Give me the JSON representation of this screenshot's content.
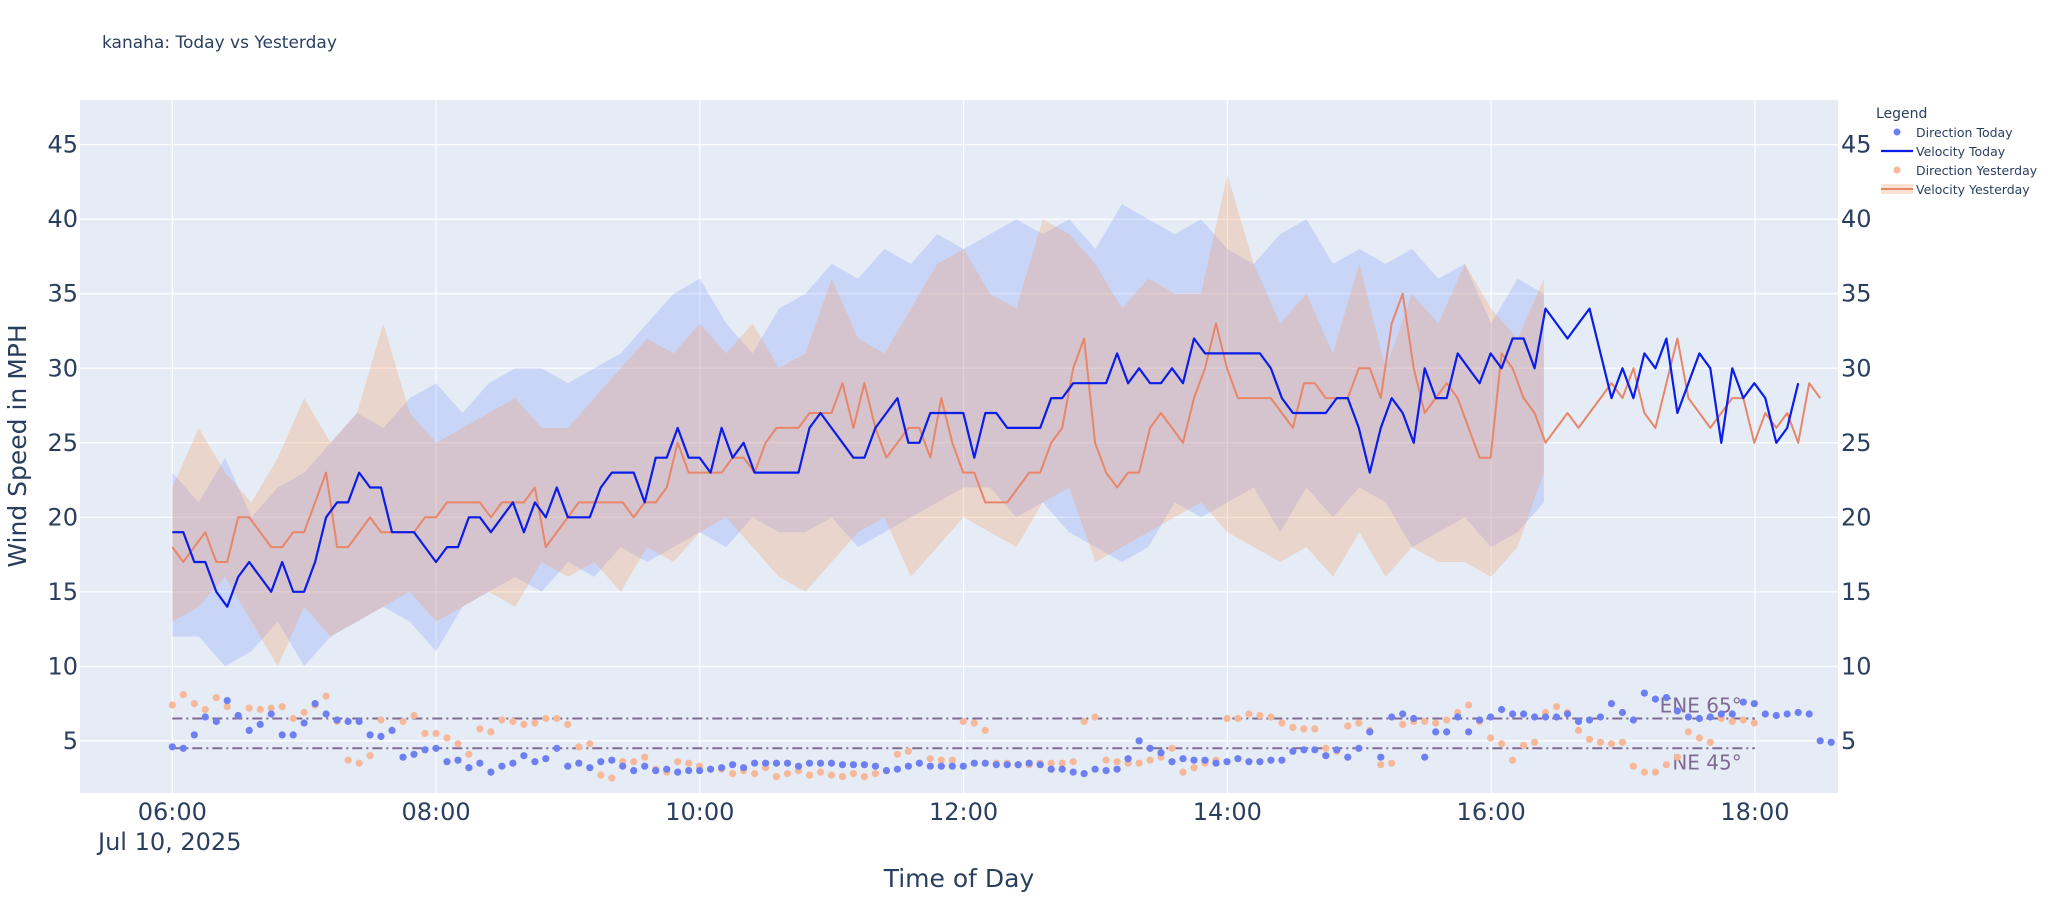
{
  "chart_data": {
    "type": "line",
    "title": "kanaha: Today vs Yesterday",
    "xlabel": "Time of Day",
    "ylabel": "Wind Speed in MPH",
    "date_label": "Jul 10, 2025",
    "x_ticks": [
      "06:00",
      "08:00",
      "10:00",
      "12:00",
      "14:00",
      "16:00",
      "18:00"
    ],
    "x_tick_hours": [
      6,
      8,
      10,
      12,
      14,
      16,
      18
    ],
    "xlim": [
      5.3,
      18.63
    ],
    "ylim": [
      1.5,
      48
    ],
    "y_ticks": [
      5,
      10,
      15,
      20,
      25,
      30,
      35,
      40,
      45
    ],
    "legend_title": "Legend",
    "legend": [
      "Direction Today",
      "Velocity Today",
      "Direction Yesterday",
      "Velocity Yesterday"
    ],
    "colors": {
      "plot_bg": "#e5ecf6",
      "grid": "#ffffff",
      "text": "#2a3f5f",
      "today_line": "#0b1de8",
      "today_points": "#6e7ff2",
      "today_band": "rgba(100,130,250,0.22)",
      "yesterday_line": "#e8866a",
      "yesterday_points": "#f7b89a",
      "yesterday_band": "rgba(245,160,110,0.30)",
      "ref_line": "#7f6a93"
    },
    "reference_lines": [
      {
        "label": "ENE 65°",
        "value": 6.5
      },
      {
        "label": "NE 45°",
        "value": 4.5
      }
    ],
    "series": [
      {
        "name": "Velocity Today",
        "start_hour": 6.0,
        "step_hours": 0.0833,
        "values": [
          19,
          19,
          17,
          17,
          15,
          14,
          16,
          17,
          16,
          15,
          17,
          15,
          15,
          17,
          20,
          21,
          21,
          23,
          22,
          22,
          19,
          19,
          19,
          18,
          17,
          18,
          18,
          20,
          20,
          19,
          20,
          21,
          19,
          21,
          20,
          22,
          20,
          20,
          20,
          22,
          23,
          23,
          23,
          21,
          24,
          24,
          26,
          24,
          24,
          23,
          26,
          24,
          25,
          23,
          23,
          23,
          23,
          23,
          26,
          27,
          26,
          25,
          24,
          24,
          26,
          27,
          28,
          25,
          25,
          27,
          27,
          27,
          27,
          24,
          27,
          27,
          26,
          26,
          26,
          26,
          28,
          28,
          29,
          29,
          29,
          29,
          31,
          29,
          30,
          29,
          29,
          30,
          29,
          32,
          31,
          31,
          31,
          31,
          31,
          31,
          30,
          28,
          27,
          27,
          27,
          27,
          28,
          28,
          26,
          23,
          26,
          28,
          27,
          25,
          30,
          28,
          28,
          31,
          30,
          29,
          31,
          30,
          32,
          32,
          30,
          34,
          33,
          32,
          33,
          34,
          31,
          28,
          30,
          28,
          31,
          30,
          32,
          27,
          29,
          31,
          30,
          25,
          30,
          28,
          29,
          28,
          25,
          26,
          29
        ]
      },
      {
        "name": "Velocity Today Band Upper",
        "start_hour": 6.0,
        "step_hours": 0.2,
        "values": [
          23,
          21,
          24,
          20,
          22,
          23,
          25,
          27,
          26,
          28,
          29,
          27,
          29,
          30,
          30,
          29,
          30,
          31,
          33,
          35,
          36,
          33,
          31,
          34,
          35,
          37,
          36,
          38,
          37,
          39,
          38,
          39,
          40,
          39,
          40,
          38,
          41,
          40,
          39,
          40,
          38,
          37,
          39,
          40,
          37,
          38,
          37,
          38,
          36,
          37,
          33,
          36,
          35
        ]
      },
      {
        "name": "Velocity Today Band Lower",
        "start_hour": 6.0,
        "step_hours": 0.2,
        "values": [
          12,
          12,
          10,
          11,
          13,
          10,
          12,
          13,
          14,
          13,
          11,
          14,
          15,
          16,
          15,
          17,
          16,
          18,
          17,
          18,
          19,
          18,
          20,
          19,
          19,
          20,
          18,
          19,
          20,
          21,
          22,
          22,
          20,
          21,
          19,
          18,
          17,
          18,
          21,
          20,
          21,
          22,
          19,
          22,
          20,
          22,
          21,
          18,
          19,
          20,
          18,
          19,
          21
        ]
      },
      {
        "name": "Velocity Yesterday",
        "start_hour": 6.0,
        "step_hours": 0.0833,
        "values": [
          18,
          17,
          18,
          19,
          17,
          17,
          20,
          20,
          19,
          18,
          18,
          19,
          19,
          21,
          23,
          18,
          18,
          19,
          20,
          19,
          19,
          19,
          19,
          20,
          20,
          21,
          21,
          21,
          21,
          20,
          21,
          21,
          21,
          22,
          18,
          19,
          20,
          21,
          21,
          21,
          21,
          21,
          20,
          21,
          21,
          22,
          25,
          23,
          23,
          23,
          23,
          24,
          24,
          23,
          25,
          26,
          26,
          26,
          27,
          27,
          27,
          29,
          26,
          29,
          26,
          24,
          25,
          26,
          26,
          24,
          28,
          25,
          23,
          23,
          21,
          21,
          21,
          22,
          23,
          23,
          25,
          26,
          30,
          32,
          25,
          23,
          22,
          23,
          23,
          26,
          27,
          26,
          25,
          28,
          30,
          33,
          30,
          28,
          28,
          28,
          28,
          27,
          26,
          29,
          29,
          28,
          28,
          28,
          30,
          30,
          28,
          33,
          35,
          30,
          27,
          28,
          29,
          28,
          26,
          24,
          24,
          31,
          30,
          28,
          27,
          25,
          26,
          27,
          26,
          27,
          28,
          29,
          28,
          30,
          27,
          26,
          29,
          32,
          28,
          27,
          26,
          27,
          28,
          28,
          25,
          27,
          26,
          27,
          25,
          29,
          28
        ]
      },
      {
        "name": "Velocity Yesterday Band Upper",
        "start_hour": 6.0,
        "step_hours": 0.2,
        "values": [
          22,
          26,
          23,
          21,
          24,
          28,
          25,
          27,
          33,
          27,
          25,
          26,
          27,
          28,
          26,
          26,
          28,
          30,
          32,
          31,
          33,
          31,
          33,
          30,
          31,
          36,
          32,
          31,
          34,
          37,
          38,
          35,
          34,
          40,
          39,
          37,
          34,
          36,
          35,
          35,
          43,
          37,
          33,
          35,
          31,
          37,
          30,
          35,
          33,
          37,
          34,
          32,
          36
        ]
      },
      {
        "name": "Velocity Yesterday Band Lower",
        "start_hour": 6.0,
        "step_hours": 0.2,
        "values": [
          13,
          14,
          16,
          13,
          10,
          14,
          12,
          13,
          14,
          15,
          13,
          14,
          15,
          14,
          17,
          16,
          17,
          15,
          18,
          17,
          19,
          20,
          18,
          16,
          15,
          17,
          19,
          20,
          16,
          18,
          20,
          19,
          18,
          21,
          22,
          17,
          18,
          19,
          20,
          21,
          19,
          18,
          17,
          18,
          16,
          19,
          16,
          18,
          17,
          17,
          16,
          18,
          23
        ]
      },
      {
        "name": "Direction Today",
        "start_hour": 6.0,
        "step_hours": 0.0833,
        "values": [
          4.6,
          4.5,
          5.4,
          6.6,
          6.3,
          7.7,
          6.7,
          5.7,
          6.1,
          6.8,
          5.4,
          5.4,
          6.2,
          7.5,
          6.8,
          6.4,
          6.3,
          6.3,
          5.4,
          5.3,
          5.7,
          3.9,
          4.1,
          4.4,
          4.5,
          3.6,
          3.7,
          3.2,
          3.5,
          2.9,
          3.3,
          3.5,
          4.0,
          3.6,
          3.8,
          4.5,
          3.3,
          3.5,
          3.2,
          3.6,
          3.7,
          3.3,
          3.0,
          3.3,
          3.0,
          3.1,
          2.9,
          3.0,
          3.0,
          3.1,
          3.2,
          3.4,
          3.2,
          3.5,
          3.5,
          3.5,
          3.5,
          3.3,
          3.5,
          3.5,
          3.5,
          3.4,
          3.4,
          3.4,
          3.3,
          3.0,
          3.1,
          3.3,
          3.5,
          3.3,
          3.3,
          3.3,
          3.3,
          3.5,
          3.5,
          3.4,
          3.4,
          3.4,
          3.5,
          3.4,
          3.1,
          3.1,
          2.9,
          2.8,
          3.1,
          3.0,
          3.1,
          3.8,
          5.0,
          4.5,
          4.2,
          3.6,
          3.8,
          3.7,
          3.7,
          3.5,
          3.6,
          3.8,
          3.6,
          3.6,
          3.7,
          3.7,
          4.3,
          4.4,
          4.4,
          4.0,
          4.4,
          3.9,
          4.5,
          5.6,
          3.9,
          6.6,
          6.8,
          6.5,
          3.9,
          5.6,
          5.6,
          6.6,
          5.6,
          6.4,
          6.6,
          7.1,
          6.8,
          6.8,
          6.6,
          6.6,
          6.6,
          6.8,
          6.3,
          6.4,
          6.6,
          7.5,
          6.9,
          6.4,
          8.2,
          7.8,
          7.9,
          7.0,
          6.6,
          6.5,
          6.6,
          6.8,
          6.8,
          7.6,
          7.5,
          6.8,
          6.7,
          6.8,
          6.9,
          6.8,
          5.0,
          4.9
        ]
      },
      {
        "name": "Direction Yesterday",
        "start_hour": 6.0,
        "step_hours": 0.0833,
        "values": [
          7.4,
          8.1,
          7.5,
          7.1,
          7.9,
          7.3,
          6.7,
          7.2,
          7.1,
          7.2,
          7.3,
          6.5,
          6.9,
          7.4,
          8.0,
          6.3,
          3.7,
          3.5,
          4.0,
          6.4,
          5.7,
          6.3,
          6.7,
          5.5,
          5.5,
          5.2,
          4.8,
          4.1,
          5.8,
          5.6,
          6.4,
          6.3,
          6.1,
          6.2,
          6.5,
          6.5,
          6.1,
          4.6,
          4.8,
          2.7,
          2.5,
          3.6,
          3.6,
          3.9,
          3.1,
          2.9,
          3.6,
          3.5,
          3.3,
          3.1,
          3.1,
          2.8,
          3.0,
          2.8,
          3.2,
          2.6,
          2.8,
          3.0,
          2.7,
          2.9,
          2.7,
          2.6,
          2.8,
          2.6,
          2.8,
          3.0,
          4.1,
          4.3,
          3.5,
          3.8,
          3.7,
          3.7,
          6.3,
          6.2,
          5.7,
          3.5,
          3.5,
          3.4,
          3.4,
          3.5,
          3.5,
          3.5,
          3.6,
          6.3,
          6.6,
          3.7,
          3.6,
          3.5,
          3.5,
          3.7,
          3.9,
          4.5,
          2.9,
          3.2,
          3.5,
          3.7,
          6.5,
          6.5,
          6.8,
          6.7,
          6.6,
          6.2,
          5.9,
          5.8,
          5.8,
          4.5,
          4.3,
          6.0,
          6.2,
          5.7,
          3.4,
          3.5,
          6.1,
          6.3,
          6.3,
          6.2,
          6.4,
          6.9,
          7.4,
          6.3,
          5.2,
          4.8,
          3.7,
          4.7,
          4.9,
          6.9,
          7.3,
          6.9,
          5.7,
          5.1,
          4.9,
          4.8,
          4.9,
          3.3,
          2.9,
          2.9,
          3.4,
          3.9,
          5.6,
          5.2,
          4.9,
          6.5,
          6.3,
          6.4,
          6.2
        ]
      }
    ]
  }
}
